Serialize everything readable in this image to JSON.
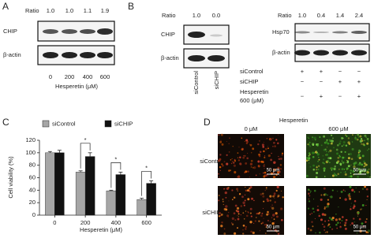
{
  "panels": {
    "A": {
      "label": "A",
      "ratio_label": "Ratio",
      "ratios": [
        "1.0",
        "1.0",
        "1.1",
        "1.9"
      ],
      "rows": [
        "CHIP",
        "β-actin"
      ],
      "doses": [
        "0",
        "200",
        "400",
        "600"
      ],
      "xlabel": "Hesperetin (μM)"
    },
    "B": {
      "label": "B",
      "left": {
        "ratio_label": "Ratio",
        "ratios": [
          "1.0",
          "0.0"
        ],
        "rows": [
          "CHIP",
          "β-actin"
        ],
        "lanes": [
          "siControl",
          "siCHIP"
        ]
      },
      "right": {
        "ratio_label": "Ratio",
        "ratios": [
          "1.0",
          "0.4",
          "1.4",
          "2.4"
        ],
        "rows": [
          "Hsp70",
          "β-actin"
        ],
        "conditions": [
          {
            "name": [
              "siControl"
            ],
            "signs": [
              "+",
              "+",
              "−",
              "−"
            ]
          },
          {
            "name": [
              "siCHIP"
            ],
            "signs": [
              "−",
              "−",
              "+",
              "+"
            ]
          },
          {
            "name": [
              "Hesperetin",
              "600 (μM)"
            ],
            "signs": [
              "−",
              "+",
              "−",
              "+"
            ]
          }
        ]
      }
    },
    "D": {
      "label": "D",
      "title": "Hesperetin",
      "columns": [
        "0 μM",
        "600 μM"
      ],
      "rows": [
        "siControl",
        "siCHIP"
      ],
      "scale_bar": "50 μm"
    }
  },
  "chart_data": {
    "type": "bar",
    "panel_label": "C",
    "ylabel": "Cell viability (%)",
    "xlabel": "Hesperetin (μM)",
    "categories": [
      "0",
      "200",
      "400",
      "600"
    ],
    "series": [
      {
        "name": "siControl",
        "color": "#a6a6a6",
        "values": [
          100,
          69,
          39,
          25
        ],
        "errors": [
          2,
          2,
          1,
          2
        ]
      },
      {
        "name": "siCHIP",
        "color": "#111111",
        "values": [
          100,
          94,
          65,
          51
        ],
        "errors": [
          4,
          6,
          4,
          4
        ]
      }
    ],
    "significance": [
      null,
      "*",
      "*",
      "*"
    ],
    "ylim": [
      0,
      120
    ],
    "yticks": [
      0,
      20,
      40,
      60,
      80,
      100,
      120
    ]
  }
}
